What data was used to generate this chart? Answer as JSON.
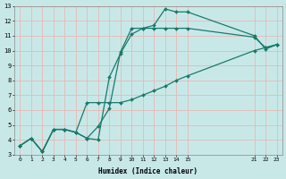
{
  "background_color": "#c8e8e8",
  "grid_color": "#e8b8b8",
  "line_color": "#1a7a6a",
  "xlabel": "Humidex (Indice chaleur)",
  "ylim": [
    3,
    13
  ],
  "xlim": [
    -0.5,
    23.5
  ],
  "line1_x": [
    0,
    1,
    2,
    3,
    4,
    5,
    6,
    7,
    8,
    9,
    10,
    11,
    12,
    13,
    14,
    15,
    21,
    22,
    23
  ],
  "line1_y": [
    3.6,
    4.1,
    3.2,
    4.7,
    4.7,
    4.5,
    4.1,
    4.0,
    8.2,
    9.8,
    11.1,
    11.5,
    11.7,
    12.8,
    12.6,
    12.6,
    11.0,
    10.1,
    10.4
  ],
  "line2_x": [
    0,
    1,
    2,
    3,
    4,
    5,
    6,
    7,
    8,
    9,
    10,
    11,
    12,
    13,
    14,
    15,
    21,
    22,
    23
  ],
  "line2_y": [
    3.6,
    4.1,
    3.2,
    4.7,
    4.7,
    4.5,
    4.1,
    4.9,
    6.1,
    9.9,
    11.5,
    11.5,
    11.5,
    11.5,
    11.5,
    11.5,
    10.9,
    10.2,
    10.4
  ],
  "line3_x": [
    0,
    1,
    2,
    3,
    4,
    5,
    6,
    7,
    8,
    9,
    10,
    11,
    12,
    13,
    14,
    15,
    21,
    22,
    23
  ],
  "line3_y": [
    3.6,
    4.1,
    3.2,
    4.7,
    4.7,
    4.5,
    6.5,
    6.5,
    6.5,
    6.5,
    6.7,
    7.0,
    7.3,
    7.6,
    8.0,
    8.3,
    10.0,
    10.2,
    10.4
  ],
  "yticks": [
    3,
    4,
    5,
    6,
    7,
    8,
    9,
    10,
    11,
    12,
    13
  ],
  "xticks": [
    0,
    1,
    2,
    3,
    4,
    5,
    6,
    7,
    8,
    9,
    10,
    11,
    12,
    13,
    14,
    15,
    21,
    22,
    23
  ],
  "xtick_labels": [
    "0",
    "1",
    "2",
    "3",
    "4",
    "5",
    "6",
    "7",
    "8",
    "9",
    "10",
    "11",
    "12",
    "13",
    "14",
    "15",
    "21",
    "22",
    "23"
  ],
  "marker": "D",
  "markersize": 2.0,
  "linewidth": 0.9
}
